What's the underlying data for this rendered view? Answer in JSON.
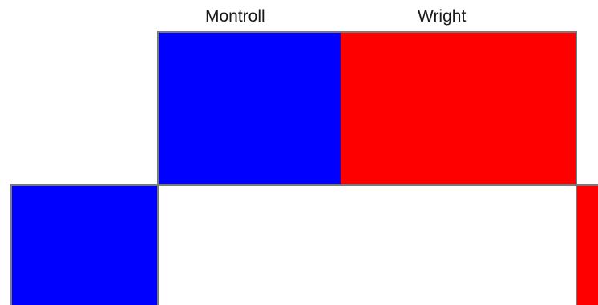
{
  "labels": {
    "left": "Montroll",
    "right": "Wright"
  },
  "colors": {
    "montroll": "#0000ff",
    "wright": "#ff0000",
    "background": "#ffffff",
    "edge": "#7a7a7a"
  }
}
